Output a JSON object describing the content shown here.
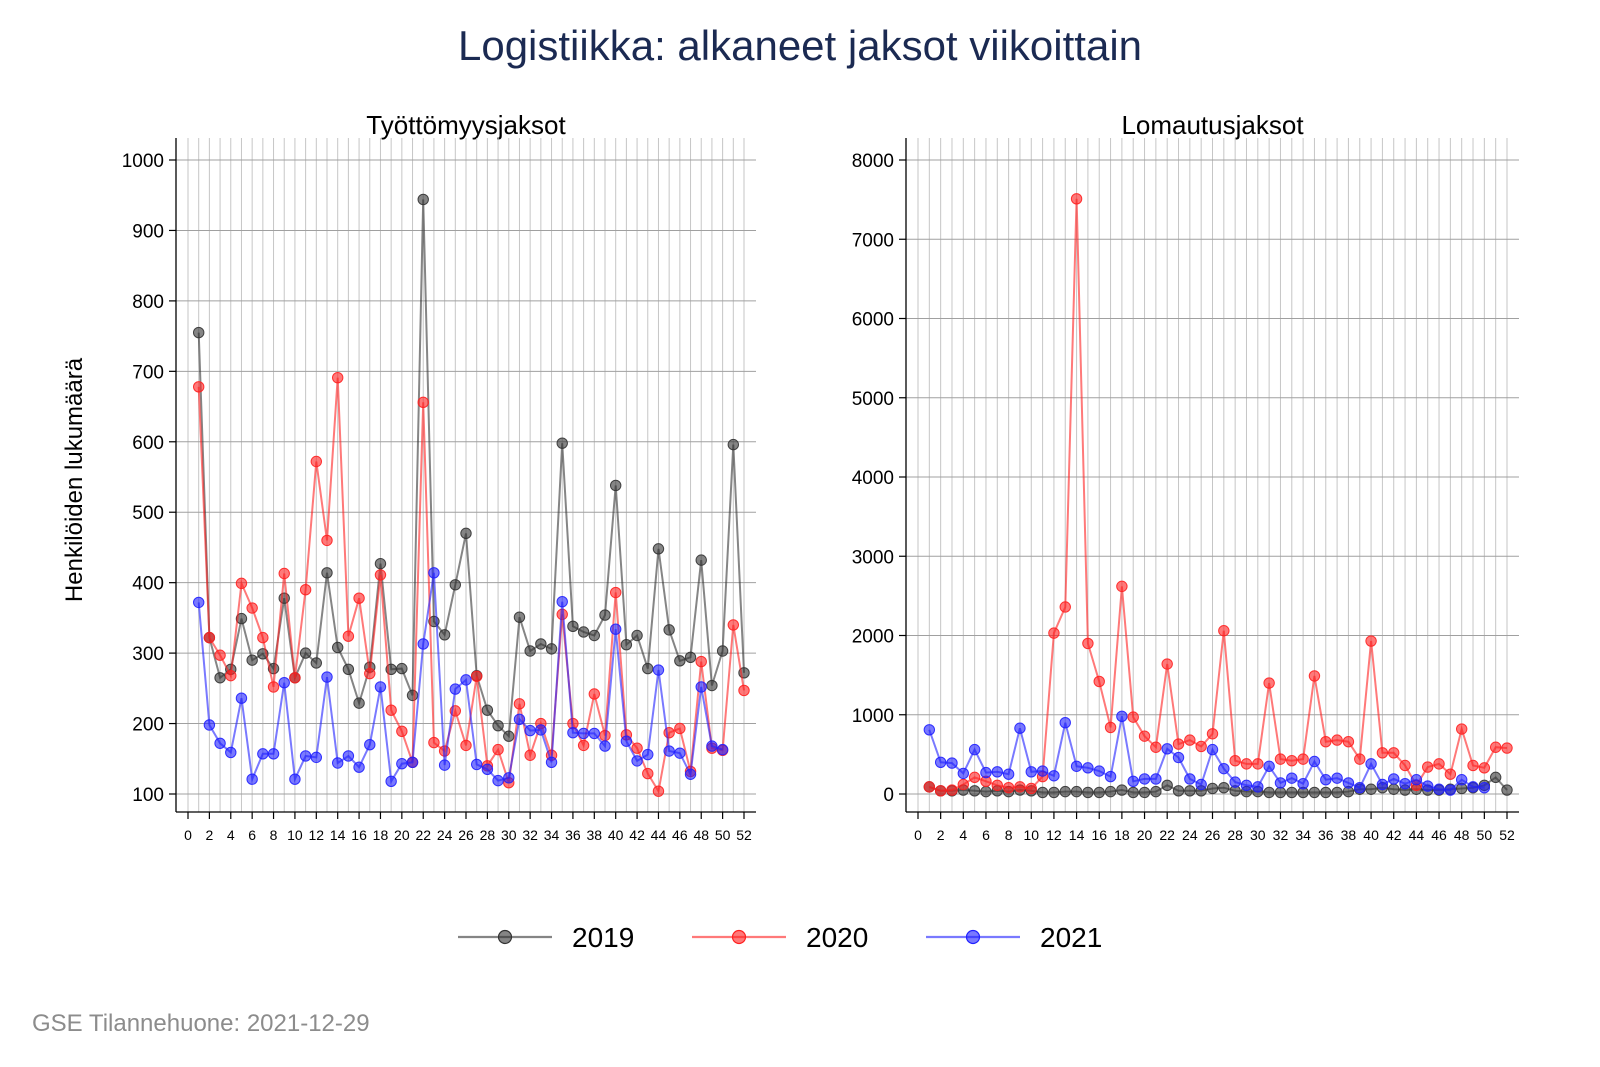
{
  "title": "Logistiikka: alkaneet jaksot viikoittain",
  "ylabel": "Henkilöiden lukumäärä",
  "footer": "GSE Tilannehuone: 2021-12-29",
  "legend": [
    {
      "label": "2019",
      "color": "#333333"
    },
    {
      "label": "2020",
      "color": "#ff2020"
    },
    {
      "label": "2021",
      "color": "#2020ff"
    }
  ],
  "chart_data": [
    {
      "type": "line",
      "title": "Työttömyysjaksot",
      "xlabel": "",
      "ylabel": "Henkilöiden lukumäärä",
      "xlim": [
        0,
        52
      ],
      "ylim": [
        100,
        1000
      ],
      "xticks": [
        0,
        2,
        4,
        6,
        8,
        10,
        12,
        14,
        16,
        18,
        20,
        22,
        24,
        26,
        28,
        30,
        32,
        34,
        36,
        38,
        40,
        42,
        44,
        46,
        48,
        50,
        52
      ],
      "yticks": [
        100,
        200,
        300,
        400,
        500,
        600,
        700,
        800,
        900,
        1000
      ],
      "grid": true,
      "legend_position": "bottom",
      "x": [
        1,
        2,
        3,
        4,
        5,
        6,
        7,
        8,
        9,
        10,
        11,
        12,
        13,
        14,
        15,
        16,
        17,
        18,
        19,
        20,
        21,
        22,
        23,
        24,
        25,
        26,
        27,
        28,
        29,
        30,
        31,
        32,
        33,
        34,
        35,
        36,
        37,
        38,
        39,
        40,
        41,
        42,
        43,
        44,
        45,
        46,
        47,
        48,
        49,
        50,
        51,
        52
      ],
      "series": [
        {
          "name": "2019",
          "color": "#333333",
          "values": [
            755,
            322,
            265,
            277,
            349,
            290,
            299,
            278,
            378,
            265,
            300,
            286,
            414,
            308,
            277,
            229,
            280,
            427,
            277,
            278,
            240,
            944,
            345,
            326,
            397,
            470,
            268,
            219,
            197,
            182,
            351,
            303,
            313,
            306,
            598,
            338,
            330,
            325,
            354,
            538,
            312,
            325,
            278,
            448,
            333,
            289,
            294,
            432,
            254,
            303,
            596,
            272
          ]
        },
        {
          "name": "2020",
          "color": "#ff2020",
          "values": [
            678,
            322,
            297,
            268,
            399,
            364,
            322,
            252,
            413,
            265,
            390,
            572,
            460,
            691,
            324,
            378,
            271,
            411,
            219,
            189,
            145,
            656,
            173,
            161,
            218,
            169,
            267,
            140,
            163,
            116,
            228,
            155,
            200,
            155,
            355,
            200,
            169,
            242,
            183,
            386,
            184,
            165,
            129,
            104,
            187,
            193,
            132,
            288,
            165,
            162,
            340,
            247
          ]
        },
        {
          "name": "2021",
          "color": "#2020ff",
          "values": [
            372,
            198,
            172,
            159,
            236,
            121,
            157,
            157,
            258,
            121,
            154,
            152,
            266,
            144,
            154,
            138,
            170,
            252,
            118,
            143,
            145,
            313,
            414,
            141,
            249,
            262,
            142,
            135,
            119,
            123,
            206,
            190,
            191,
            145,
            373,
            187,
            186,
            186,
            168,
            334,
            175,
            147,
            156,
            276,
            161,
            158,
            128,
            252,
            168,
            163,
            null,
            null
          ]
        }
      ]
    },
    {
      "type": "line",
      "title": "Lomautusjaksot",
      "xlabel": "",
      "ylabel": "",
      "xlim": [
        0,
        52
      ],
      "ylim": [
        0,
        8000
      ],
      "xticks": [
        0,
        2,
        4,
        6,
        8,
        10,
        12,
        14,
        16,
        18,
        20,
        22,
        24,
        26,
        28,
        30,
        32,
        34,
        36,
        38,
        40,
        42,
        44,
        46,
        48,
        50,
        52
      ],
      "yticks": [
        0,
        1000,
        2000,
        3000,
        4000,
        5000,
        6000,
        7000,
        8000
      ],
      "grid": true,
      "legend_position": "bottom",
      "x": [
        1,
        2,
        3,
        4,
        5,
        6,
        7,
        8,
        9,
        10,
        11,
        12,
        13,
        14,
        15,
        16,
        17,
        18,
        19,
        20,
        21,
        22,
        23,
        24,
        25,
        26,
        27,
        28,
        29,
        30,
        31,
        32,
        33,
        34,
        35,
        36,
        37,
        38,
        39,
        40,
        41,
        42,
        43,
        44,
        45,
        46,
        47,
        48,
        49,
        50,
        51,
        52
      ],
      "series": [
        {
          "name": "2019",
          "color": "#333333",
          "values": [
            90,
            40,
            40,
            50,
            40,
            30,
            40,
            30,
            50,
            40,
            20,
            20,
            30,
            30,
            20,
            20,
            30,
            50,
            20,
            20,
            30,
            110,
            40,
            40,
            40,
            70,
            80,
            40,
            30,
            30,
            20,
            20,
            20,
            20,
            20,
            20,
            20,
            30,
            60,
            60,
            80,
            60,
            50,
            60,
            50,
            50,
            60,
            70,
            80,
            110,
            210,
            50
          ]
        },
        {
          "name": "2020",
          "color": "#ff2020",
          "values": [
            90,
            40,
            50,
            120,
            210,
            160,
            110,
            80,
            90,
            70,
            220,
            2030,
            2360,
            7510,
            1900,
            1420,
            840,
            2620,
            970,
            730,
            590,
            1640,
            630,
            680,
            600,
            760,
            2060,
            420,
            380,
            380,
            1400,
            440,
            420,
            440,
            1490,
            660,
            680,
            660,
            440,
            1930,
            520,
            520,
            360,
            110,
            340,
            380,
            250,
            820,
            360,
            330,
            590,
            580
          ]
        },
        {
          "name": "2021",
          "color": "#2020ff",
          "values": [
            810,
            400,
            390,
            260,
            560,
            270,
            280,
            250,
            830,
            280,
            290,
            230,
            900,
            350,
            330,
            290,
            220,
            980,
            160,
            190,
            190,
            570,
            460,
            190,
            120,
            560,
            320,
            150,
            110,
            90,
            350,
            140,
            200,
            130,
            410,
            180,
            200,
            140,
            80,
            380,
            120,
            190,
            130,
            180,
            100,
            60,
            50,
            180,
            90,
            80,
            null,
            null
          ]
        }
      ]
    }
  ]
}
